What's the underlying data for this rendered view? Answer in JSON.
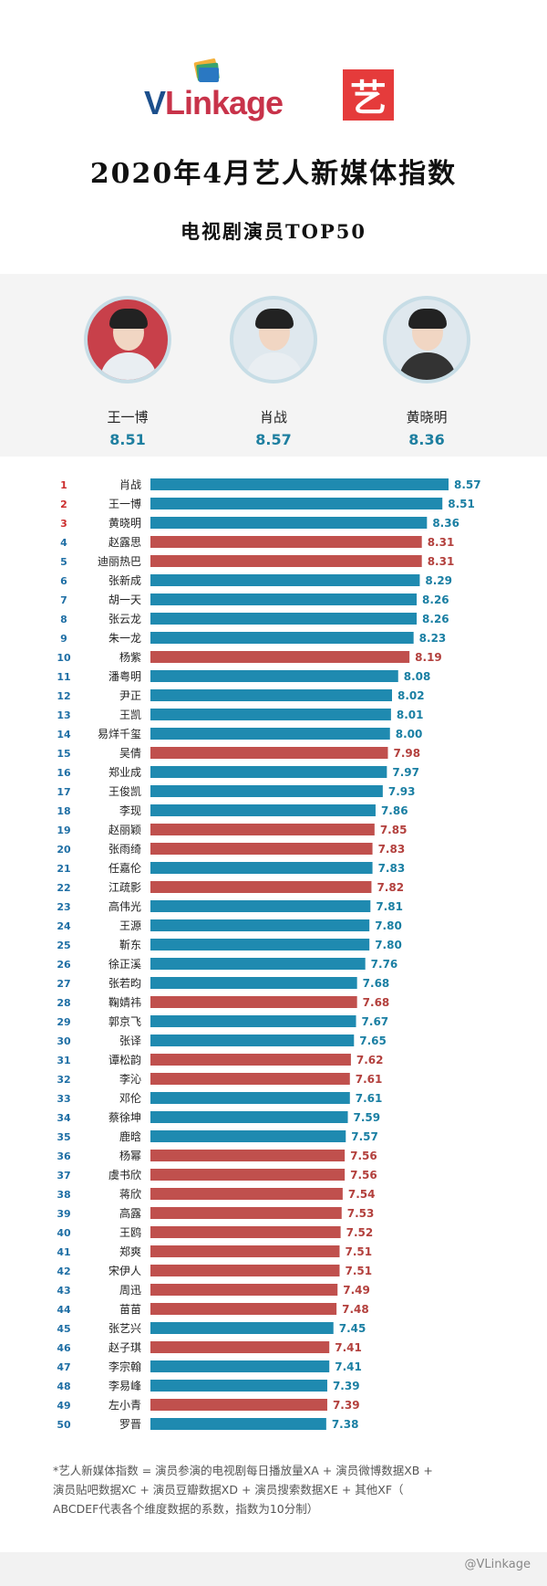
{
  "header": {
    "logo_text_v": "V",
    "logo_text_rest": "Linkage",
    "logo_badge": "艺",
    "title": "2020年4月艺人新媒体指数",
    "subtitle": "电视剧演员TOP50"
  },
  "podium": [
    {
      "name": "王一博",
      "score": "8.51",
      "avatar_style": "red"
    },
    {
      "name": "肖战",
      "score": "8.57",
      "avatar_style": "light"
    },
    {
      "name": "黄晓明",
      "score": "8.36",
      "avatar_style": "dark"
    }
  ],
  "colors": {
    "blue": "#1f8ab0",
    "red": "#c0504d",
    "rank_red": "#cc2e2e",
    "rank_blue": "#1f6fa5"
  },
  "chart_data": {
    "type": "bar",
    "orientation": "horizontal",
    "title": "电视剧演员TOP50",
    "categories": [
      "肖战",
      "王一博",
      "黄晓明",
      "赵露思",
      "迪丽热巴",
      "张新成",
      "胡一天",
      "张云龙",
      "朱一龙",
      "杨紫",
      "潘粤明",
      "尹正",
      "王凯",
      "易烊千玺",
      "吴倩",
      "郑业成",
      "王俊凯",
      "李现",
      "赵丽颖",
      "张雨绮",
      "任嘉伦",
      "江疏影",
      "高伟光",
      "王源",
      "靳东",
      "徐正溪",
      "张若昀",
      "鞠婧祎",
      "郭京飞",
      "张译",
      "谭松韵",
      "李沁",
      "邓伦",
      "蔡徐坤",
      "鹿晗",
      "杨幂",
      "虞书欣",
      "蒋欣",
      "高露",
      "王鸥",
      "郑爽",
      "宋伊人",
      "周迅",
      "苗苗",
      "张艺兴",
      "赵子琪",
      "李宗翰",
      "李易峰",
      "左小青",
      "罗晋"
    ],
    "ranks": [
      1,
      2,
      3,
      4,
      5,
      6,
      7,
      8,
      9,
      10,
      11,
      12,
      13,
      14,
      15,
      16,
      17,
      18,
      19,
      20,
      21,
      22,
      23,
      24,
      25,
      26,
      27,
      28,
      29,
      30,
      31,
      32,
      33,
      34,
      35,
      36,
      37,
      38,
      39,
      40,
      41,
      42,
      43,
      44,
      45,
      46,
      47,
      48,
      49,
      50
    ],
    "values": [
      8.57,
      8.51,
      8.36,
      8.31,
      8.31,
      8.29,
      8.26,
      8.26,
      8.23,
      8.19,
      8.08,
      8.02,
      8.01,
      8.0,
      7.98,
      7.97,
      7.93,
      7.86,
      7.85,
      7.83,
      7.83,
      7.82,
      7.81,
      7.8,
      7.8,
      7.76,
      7.68,
      7.68,
      7.67,
      7.65,
      7.62,
      7.61,
      7.61,
      7.59,
      7.57,
      7.56,
      7.56,
      7.54,
      7.53,
      7.52,
      7.51,
      7.51,
      7.49,
      7.48,
      7.45,
      7.41,
      7.41,
      7.39,
      7.39,
      7.38
    ],
    "labels": [
      "8.57",
      "8.51",
      "8.36",
      "8.31",
      "8.31",
      "8.29",
      "8.26",
      "8.26",
      "8.23",
      "8.19",
      "8.08",
      "8.02",
      "8.01",
      "8.00",
      "7.98",
      "7.97",
      "7.93",
      "7.86",
      "7.85",
      "7.83",
      "7.83",
      "7.82",
      "7.81",
      "7.80",
      "7.80",
      "7.76",
      "7.68",
      "7.68",
      "7.67",
      "7.65",
      "7.62",
      "7.61",
      "7.61",
      "7.59",
      "7.57",
      "7.56",
      "7.56",
      "7.54",
      "7.53",
      "7.52",
      "7.51",
      "7.51",
      "7.49",
      "7.48",
      "7.45",
      "7.41",
      "7.41",
      "7.39",
      "7.39",
      "7.38"
    ],
    "gender": [
      "m",
      "m",
      "m",
      "f",
      "f",
      "m",
      "m",
      "m",
      "m",
      "f",
      "m",
      "m",
      "m",
      "m",
      "f",
      "m",
      "m",
      "m",
      "f",
      "f",
      "m",
      "f",
      "m",
      "m",
      "m",
      "m",
      "m",
      "f",
      "m",
      "m",
      "f",
      "f",
      "m",
      "m",
      "m",
      "f",
      "f",
      "f",
      "f",
      "f",
      "f",
      "f",
      "f",
      "f",
      "m",
      "f",
      "m",
      "m",
      "f",
      "m"
    ],
    "series_colors": {
      "m": "#1f8ab0",
      "f": "#c0504d"
    }
  },
  "footnote": {
    "line1": "*艺人新媒体指数 = 演员参演的电视剧每日播放量XA + 演员微博数据XB +",
    "line2": "演员贴吧数据XC + 演员豆瓣数据XD + 演员搜索数据XE + 其他XF（",
    "line3": "ABCDEF代表各个维度数据的系数，指数为10分制）"
  },
  "watermark": "@VLinkage"
}
